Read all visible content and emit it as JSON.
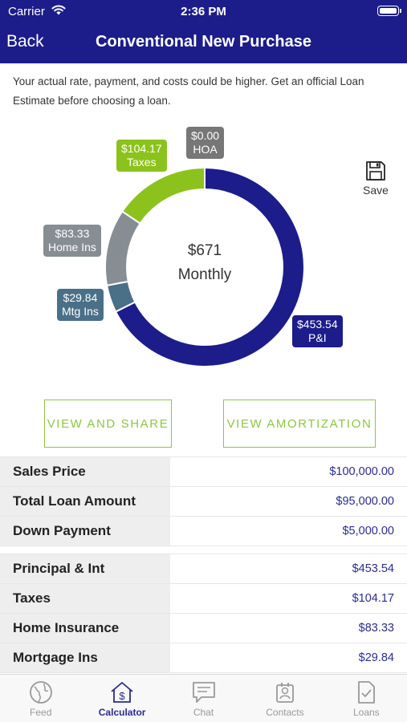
{
  "status_bar": {
    "carrier": "Carrier",
    "time": "2:36 PM"
  },
  "nav": {
    "back_label": "Back",
    "title": "Conventional New Purchase"
  },
  "disclaimer": "Your actual rate, payment, and costs could be higher. Get an official Loan Estimate before choosing a loan.",
  "chart_data": {
    "type": "pie",
    "center_value": "$671",
    "center_label": "Monthly",
    "slices": [
      {
        "amount": 453.54,
        "value_label": "$453.54",
        "name": "P&I",
        "color": "#1c1d8a"
      },
      {
        "amount": 29.84,
        "value_label": "$29.84",
        "name": "Mtg Ins",
        "color": "#4a7088"
      },
      {
        "amount": 83.33,
        "value_label": "$83.33",
        "name": "Home Ins",
        "color": "#868e94"
      },
      {
        "amount": 104.17,
        "value_label": "$104.17",
        "name": "Taxes",
        "color": "#8cc21c"
      },
      {
        "amount": 0.0,
        "value_label": "$0.00",
        "name": "HOA",
        "color": "#777777"
      }
    ]
  },
  "save": {
    "label": "Save"
  },
  "buttons": {
    "view_share": "VIEW AND SHARE",
    "view_amortization": "VIEW AMORTIZATION"
  },
  "loan_rows": [
    {
      "label": "Sales Price",
      "value": "$100,000.00"
    },
    {
      "label": "Total Loan Amount",
      "value": "$95,000.00"
    },
    {
      "label": "Down Payment",
      "value": "$5,000.00"
    }
  ],
  "payment_rows": [
    {
      "label": "Principal & Int",
      "value": "$453.54"
    },
    {
      "label": "Taxes",
      "value": "$104.17"
    },
    {
      "label": "Home Insurance",
      "value": "$83.33"
    },
    {
      "label": "Mortgage Ins",
      "value": "$29.84"
    }
  ],
  "tabs": [
    {
      "label": "Feed",
      "icon": "globe-icon"
    },
    {
      "label": "Calculator",
      "icon": "house-dollar-icon"
    },
    {
      "label": "Chat",
      "icon": "chat-icon"
    },
    {
      "label": "Contacts",
      "icon": "contacts-icon"
    },
    {
      "label": "Loans",
      "icon": "document-check-icon"
    }
  ]
}
